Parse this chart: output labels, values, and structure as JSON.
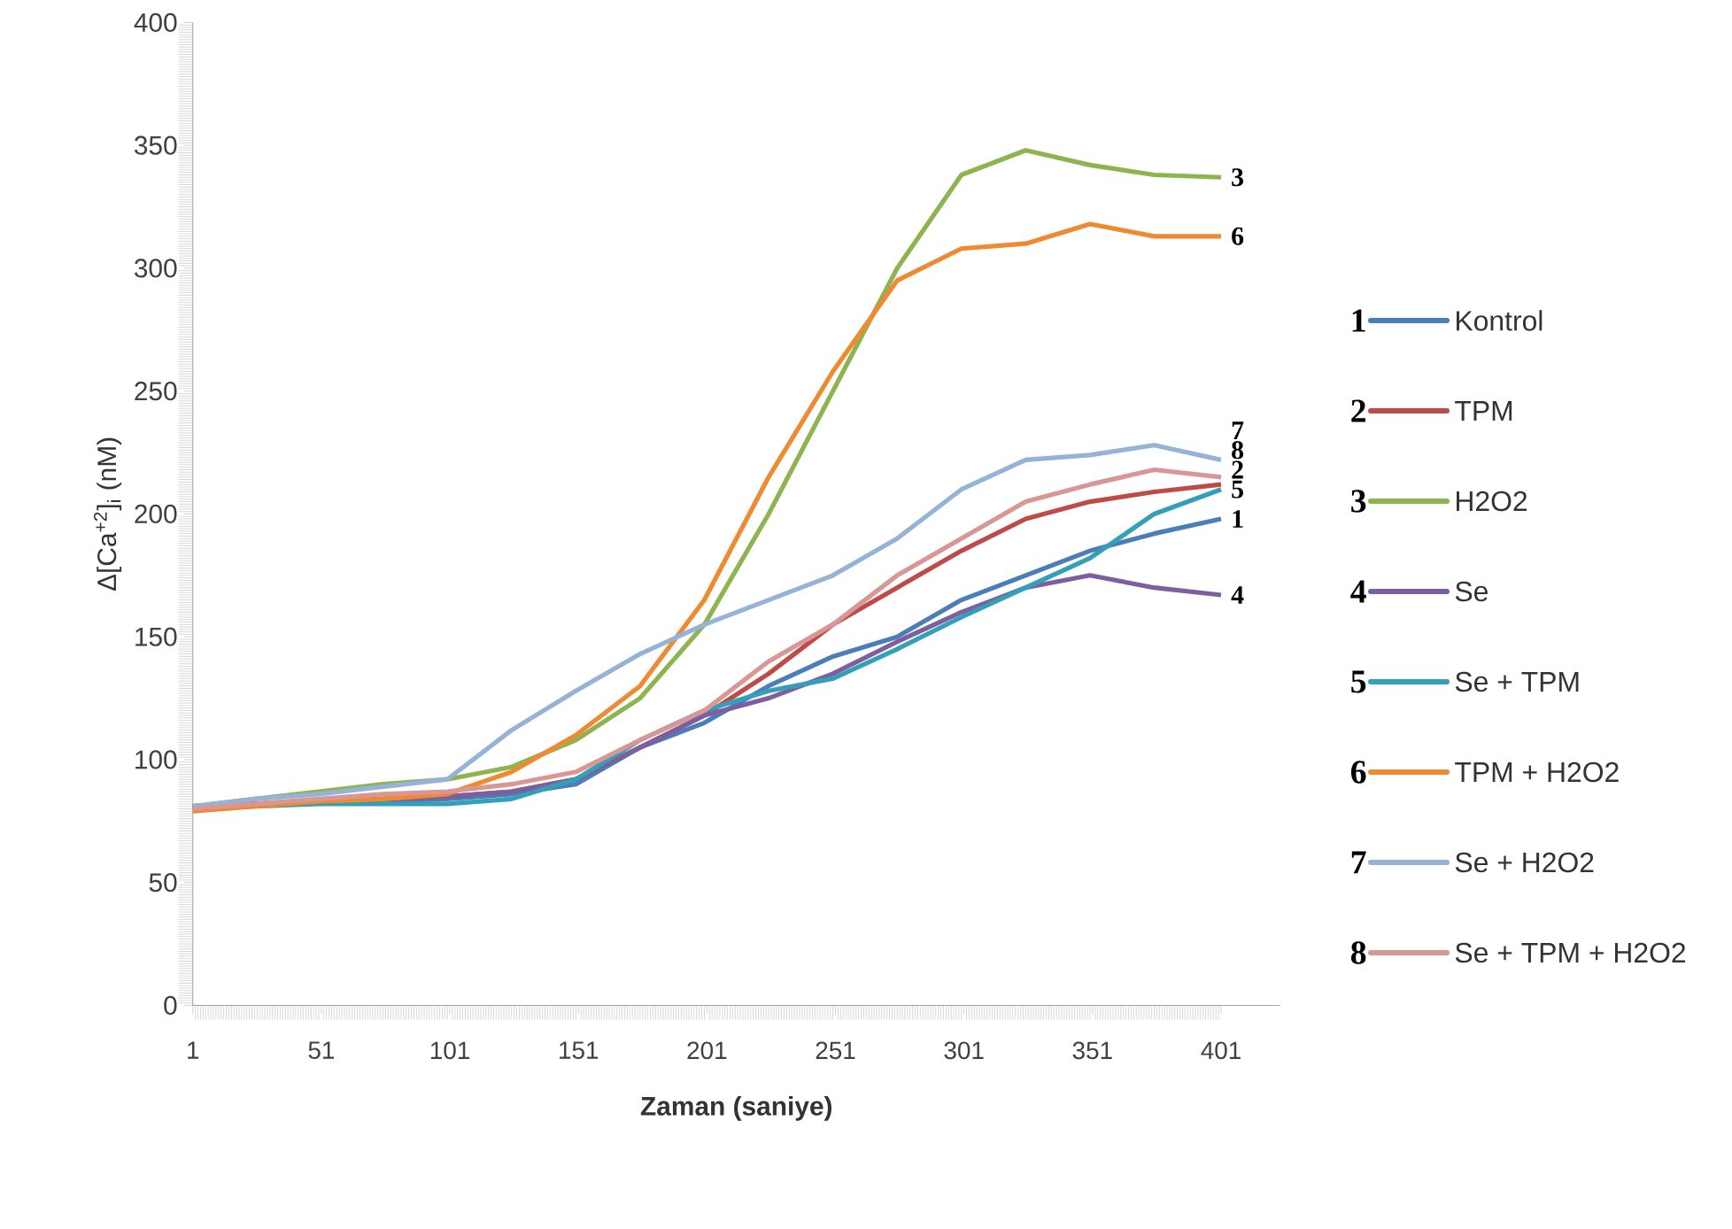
{
  "chart_data": {
    "type": "line",
    "xlabel": "Zaman (saniye)",
    "ylabel": "Δ[Ca$^{+2}$]$_{i}$ (nM)",
    "x": [
      1,
      25,
      50,
      75,
      100,
      125,
      150,
      175,
      200,
      225,
      250,
      275,
      300,
      325,
      350,
      375,
      401
    ],
    "series": [
      {
        "name": "Kontrol",
        "color": "#4a7ebb",
        "values": [
          81,
          82,
          83,
          83,
          84,
          86,
          90,
          105,
          115,
          130,
          142,
          150,
          165,
          175,
          185,
          192,
          198
        ]
      },
      {
        "name": "TPM",
        "color": "#be4b48",
        "values": [
          81,
          82,
          83,
          84,
          85,
          87,
          92,
          105,
          118,
          135,
          155,
          170,
          185,
          198,
          205,
          209,
          212
        ]
      },
      {
        "name": "H2O2",
        "color": "#8eb44f",
        "values": [
          81,
          84,
          87,
          90,
          92,
          97,
          108,
          125,
          155,
          200,
          250,
          300,
          338,
          348,
          342,
          338,
          337
        ]
      },
      {
        "name": "Se",
        "color": "#7d5fa0",
        "values": [
          81,
          82,
          83,
          84,
          85,
          87,
          92,
          105,
          118,
          125,
          135,
          148,
          160,
          170,
          175,
          170,
          167
        ]
      },
      {
        "name": "Se + TPM",
        "color": "#31a0b8",
        "values": [
          81,
          81,
          82,
          82,
          82,
          84,
          92,
          108,
          120,
          128,
          133,
          145,
          158,
          170,
          182,
          200,
          210
        ]
      },
      {
        "name": "TPM + H2O2",
        "color": "#f08a32",
        "values": [
          79,
          81,
          83,
          84,
          86,
          95,
          110,
          130,
          165,
          215,
          258,
          295,
          308,
          310,
          318,
          313,
          313
        ]
      },
      {
        "name": "Se + H2O2",
        "color": "#95b3d7",
        "values": [
          81,
          84,
          86,
          89,
          92,
          112,
          128,
          143,
          155,
          165,
          175,
          190,
          210,
          222,
          224,
          228,
          222
        ]
      },
      {
        "name": "Se + TPM + H2O2",
        "color": "#d99694",
        "values": [
          80,
          82,
          84,
          86,
          87,
          90,
          95,
          108,
          120,
          140,
          155,
          175,
          190,
          205,
          212,
          218,
          215
        ]
      }
    ],
    "annotations": [
      "1",
      "2",
      "3",
      "4",
      "5",
      "6",
      "7",
      "8"
    ],
    "xlim": [
      1,
      424
    ],
    "xticks": [
      1,
      51,
      101,
      151,
      201,
      251,
      301,
      351,
      401
    ],
    "ylim": [
      0,
      400
    ],
    "yticks": [
      0,
      50,
      100,
      150,
      200,
      250,
      300,
      350,
      400
    ],
    "grid": false,
    "legend": "right",
    "marker": "none",
    "line_style": "solid"
  }
}
